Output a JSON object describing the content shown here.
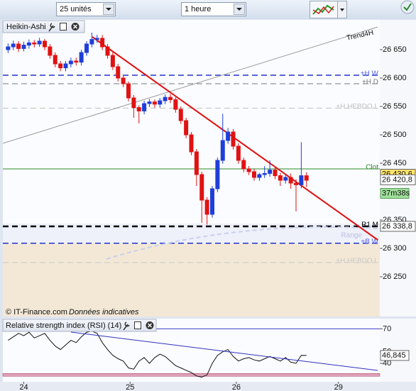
{
  "toolbar": {
    "units": "25 unités",
    "period": "1 heure"
  },
  "chart_data": [
    {
      "type": "candlestick",
      "title": "Heikin-Ashi",
      "source": "© IT-Finance.com",
      "note": "Données indicatives",
      "up_color": "#1f3fd8",
      "down_color": "#e01212",
      "x": [
        0,
        1,
        2,
        3,
        4,
        5,
        6,
        7,
        8,
        9,
        10,
        11,
        12,
        13,
        14,
        15,
        16,
        17,
        18,
        19,
        20,
        21,
        22,
        23,
        24,
        25,
        26,
        27,
        28,
        29,
        30,
        31,
        32,
        33,
        34,
        35,
        36,
        37,
        38,
        39,
        40,
        41,
        42,
        43,
        44,
        45,
        46,
        47,
        48,
        49,
        50,
        51,
        52,
        53,
        54,
        55,
        56,
        57
      ],
      "open": [
        26650,
        26655,
        26660,
        26652,
        26658,
        26662,
        26660,
        26665,
        26655,
        26640,
        26625,
        26618,
        26625,
        26630,
        26628,
        26645,
        26660,
        26668,
        26670,
        26655,
        26640,
        26620,
        26600,
        26590,
        26565,
        26548,
        26542,
        26555,
        26558,
        26554,
        26560,
        26566,
        26562,
        26545,
        26525,
        26500,
        26470,
        26430,
        26385,
        26360,
        26405,
        26455,
        26490,
        26505,
        26480,
        26455,
        26440,
        26435,
        26425,
        26430,
        26432,
        26438,
        26428,
        26420,
        26425,
        26415,
        26412,
        26428
      ],
      "high": [
        26661,
        26666,
        26665,
        26664,
        26668,
        26667,
        26671,
        26669,
        26660,
        26645,
        26630,
        26630,
        26636,
        26636,
        26650,
        26665,
        26680,
        26676,
        26676,
        26660,
        26645,
        26625,
        26605,
        26594,
        26570,
        26552,
        26560,
        26563,
        26562,
        26565,
        26571,
        26572,
        26566,
        26550,
        26530,
        26505,
        26475,
        26435,
        26390,
        26410,
        26460,
        26537,
        26512,
        26510,
        26485,
        26460,
        26445,
        26440,
        26433,
        26445,
        26455,
        26442,
        26433,
        26430,
        26432,
        26422,
        26487,
        26434
      ],
      "low": [
        26644,
        26649,
        26646,
        26647,
        26652,
        26654,
        26655,
        26649,
        26634,
        26619,
        26612,
        26612,
        26619,
        26622,
        26622,
        26639,
        26654,
        26662,
        26649,
        26634,
        26614,
        26594,
        26584,
        26559,
        26530,
        26520,
        26536,
        26549,
        26548,
        26548,
        26554,
        26556,
        26539,
        26519,
        26494,
        26464,
        26410,
        26345,
        26342,
        26354,
        26399,
        26449,
        26484,
        26474,
        26449,
        26434,
        26429,
        26419,
        26419,
        26424,
        26426,
        26422,
        26410,
        26414,
        26405,
        26365,
        26406,
        26408
      ],
      "close": [
        26655,
        26660,
        26652,
        26658,
        26662,
        26660,
        26665,
        26655,
        26640,
        26625,
        26618,
        26625,
        26630,
        26628,
        26645,
        26660,
        26668,
        26670,
        26655,
        26640,
        26620,
        26600,
        26590,
        26565,
        26548,
        26542,
        26555,
        26558,
        26554,
        26560,
        26566,
        26562,
        26545,
        26525,
        26500,
        26470,
        26430,
        26385,
        26360,
        26405,
        26455,
        26490,
        26505,
        26480,
        26455,
        26440,
        26435,
        26425,
        26430,
        26432,
        26438,
        26428,
        26420,
        26425,
        26415,
        26412,
        26428,
        26420
      ],
      "xlim": [
        -1,
        71
      ],
      "xticks": [
        {
          "value": 3,
          "label": "24"
        },
        {
          "value": 23.3,
          "label": "25"
        },
        {
          "value": 43.6,
          "label": "26"
        },
        {
          "value": 63.1,
          "label": "29"
        }
      ],
      "ylim": [
        26180,
        26680
      ],
      "yticks": [
        {
          "value": 26250,
          "label": "26 250"
        },
        {
          "value": 26300,
          "label": "26 300"
        },
        {
          "value": 26350,
          "label": "26 350"
        },
        {
          "value": 26450,
          "label": "26 450"
        },
        {
          "value": 26500,
          "label": "26 500"
        },
        {
          "value": 26550,
          "label": "26 550"
        },
        {
          "value": 26600,
          "label": "26 600"
        },
        {
          "value": 26650,
          "label": "26 650"
        }
      ],
      "levels": [
        {
          "name": "+H W",
          "value": 26605,
          "color": "#2233cc",
          "style": "dashed"
        },
        {
          "name": "+H D",
          "value": 26590,
          "color": "#777777",
          "style": "dashed"
        },
        {
          "name": "+H HEBDO L",
          "value": 26547,
          "color": "#c0c0c0",
          "style": "dashed"
        },
        {
          "name": "Clot",
          "value": 26440,
          "color": "#2a8a2a",
          "style": "solid"
        },
        {
          "name": "R1 M",
          "value": 26338.8,
          "color": "#000000",
          "style": "dashed"
        },
        {
          "name": "+B W",
          "value": 26309,
          "color": "#2233cc",
          "style": "dashed"
        },
        {
          "name": "+H HEBDO L",
          "value": 26275,
          "color": "#c8c8c8",
          "style": "dashed"
        }
      ],
      "price_boxes": [
        {
          "value": 26430.6,
          "label": "26 430,6",
          "color": "#ffe36b"
        },
        {
          "value": 26420.8,
          "label": "26 420,8",
          "color": "#ffffff"
        },
        {
          "value": 26338.8,
          "label": "26 338,8",
          "color": "#ffffff"
        }
      ],
      "timer": "37m38s",
      "trendline_labels": [
        "Trend4H",
        "Range"
      ]
    },
    {
      "type": "line",
      "title": "Relative strength index (RSI) (14)",
      "color": "#111111",
      "x": [
        0,
        1,
        2,
        3,
        4,
        5,
        6,
        7,
        8,
        9,
        10,
        11,
        12,
        13,
        14,
        15,
        16,
        17,
        18,
        19,
        20,
        21,
        22,
        23,
        24,
        25,
        26,
        27,
        28,
        29,
        30,
        31,
        32,
        33,
        34,
        35,
        36,
        37,
        38,
        39,
        40,
        41,
        42,
        43,
        44,
        45,
        46,
        47,
        48,
        49,
        50,
        51,
        52,
        53,
        54,
        55,
        56,
        57
      ],
      "values": [
        60,
        63,
        66,
        64,
        67,
        62,
        64,
        66,
        60,
        55,
        52,
        56,
        60,
        58,
        63,
        67,
        68,
        66,
        58,
        52,
        47,
        44,
        42,
        36,
        35,
        42,
        45,
        40,
        45,
        48,
        46,
        42,
        38,
        36,
        34,
        32,
        29,
        28,
        30,
        40,
        47,
        50,
        52,
        46,
        42,
        44,
        45,
        43,
        42,
        44,
        46,
        44,
        42,
        45,
        41,
        40,
        47,
        46.845
      ],
      "current": {
        "value": 46.845,
        "label": "46,845"
      },
      "xlim": [
        -1,
        71
      ],
      "ylim": [
        24,
        77
      ],
      "yticks": [
        40,
        50,
        70
      ],
      "overbought": 70,
      "oversold": 30
    }
  ]
}
